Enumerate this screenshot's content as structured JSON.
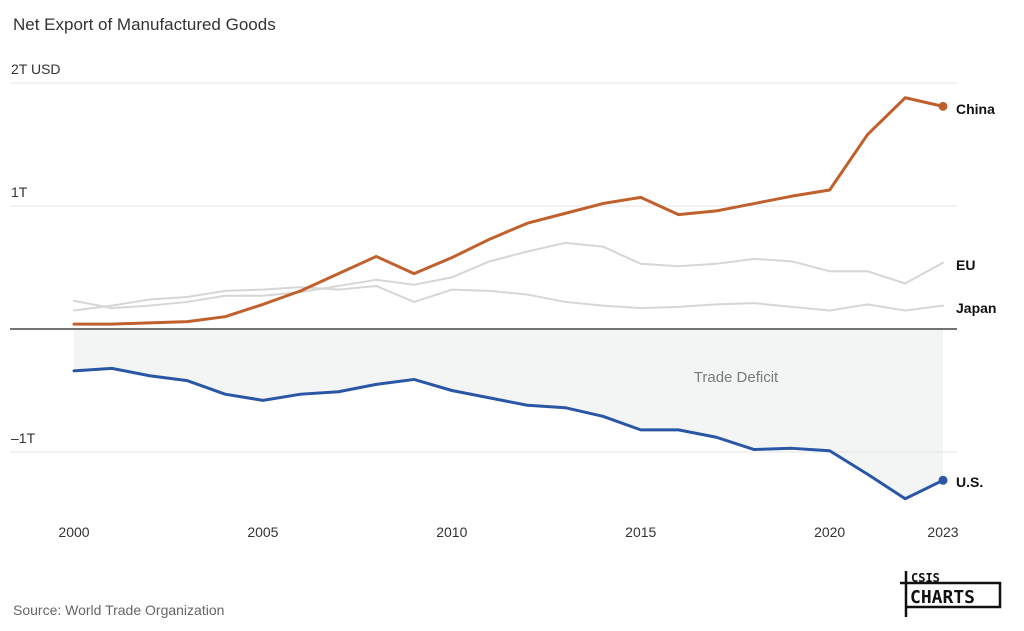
{
  "chart_data": {
    "type": "line",
    "title": "Net Export of Manufactured Goods",
    "unit_label": "2T USD",
    "y_ticks": [
      {
        "value": 2,
        "label": "2T USD"
      },
      {
        "value": 1,
        "label": "1T"
      },
      {
        "value": 0,
        "label": ""
      },
      {
        "value": -1,
        "label": "–1T"
      }
    ],
    "x_ticks": [
      2000,
      2005,
      2010,
      2015,
      2020,
      2023
    ],
    "xlim": [
      2000,
      2023
    ],
    "ylim": [
      -1.5,
      2.0
    ],
    "x": [
      2000,
      2001,
      2002,
      2003,
      2004,
      2005,
      2006,
      2007,
      2008,
      2009,
      2010,
      2011,
      2012,
      2013,
      2014,
      2015,
      2016,
      2017,
      2018,
      2019,
      2020,
      2021,
      2022,
      2023
    ],
    "series": [
      {
        "name": "EU",
        "color": "#d6d6d6",
        "highlight": false,
        "values": [
          0.23,
          0.17,
          0.19,
          0.22,
          0.27,
          0.27,
          0.3,
          0.35,
          0.4,
          0.36,
          0.42,
          0.55,
          0.63,
          0.7,
          0.67,
          0.53,
          0.51,
          0.53,
          0.57,
          0.55,
          0.47,
          0.47,
          0.37,
          0.54
        ]
      },
      {
        "name": "Japan",
        "color": "#d6d6d6",
        "highlight": false,
        "values": [
          0.15,
          0.19,
          0.24,
          0.26,
          0.31,
          0.32,
          0.34,
          0.32,
          0.35,
          0.22,
          0.32,
          0.31,
          0.28,
          0.22,
          0.19,
          0.17,
          0.18,
          0.2,
          0.21,
          0.18,
          0.15,
          0.2,
          0.15,
          0.19
        ]
      },
      {
        "name": "China",
        "color": "#c0612d",
        "highlight": true,
        "values": [
          0.04,
          0.04,
          0.05,
          0.06,
          0.1,
          0.2,
          0.31,
          0.45,
          0.59,
          0.45,
          0.58,
          0.73,
          0.86,
          0.94,
          1.02,
          1.07,
          0.93,
          0.96,
          1.02,
          1.08,
          1.13,
          1.58,
          1.88,
          1.81
        ]
      },
      {
        "name": "U.S.",
        "color": "#2a57a5",
        "highlight": true,
        "values": [
          -0.34,
          -0.32,
          -0.38,
          -0.42,
          -0.53,
          -0.58,
          -0.53,
          -0.51,
          -0.45,
          -0.41,
          -0.5,
          -0.56,
          -0.62,
          -0.64,
          -0.71,
          -0.82,
          -0.82,
          -0.88,
          -0.98,
          -0.97,
          -0.99,
          -1.18,
          -1.38,
          -1.23
        ]
      }
    ],
    "shaded_region": {
      "label": "Trade Deficit",
      "color": "#f3f5f5"
    }
  },
  "source": "Source: World Trade Organization",
  "logo": {
    "top": "CSIS",
    "bottom": "CHARTS"
  }
}
